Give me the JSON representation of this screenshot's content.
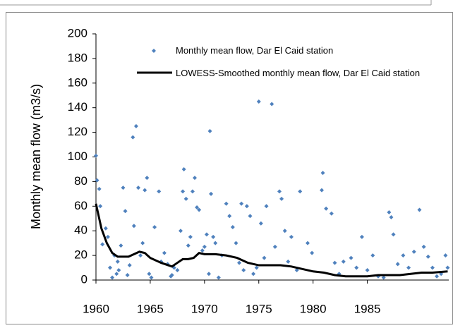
{
  "chart_data": {
    "type": "scatter",
    "y_label": "Monthly mean flow (m3/s)",
    "xlim": [
      1960,
      1992.5
    ],
    "xticks": [
      1960,
      1965,
      1970,
      1975,
      1980,
      1985
    ],
    "ylim": [
      0,
      200
    ],
    "yticks": [
      0,
      20,
      40,
      60,
      80,
      100,
      120,
      140,
      160,
      180,
      200
    ],
    "grid": false,
    "series": [
      {
        "name": "Monthly mean flow, Dar El Caid station",
        "type": "scatter",
        "color": "#4f81bd",
        "x": [
          1960.0,
          1960.1,
          1960.3,
          1960.4,
          1960.6,
          1960.9,
          1961.1,
          1961.3,
          1961.5,
          1961.7,
          1961.9,
          1962.1,
          1962.3,
          1962.5,
          1962.7,
          1962.9,
          1963.1,
          1963.4,
          1963.7,
          1963.5,
          1963.9,
          1964.1,
          1964.3,
          1964.5,
          1964.7,
          1964.9,
          1965.1,
          1965.4,
          1965.8,
          1966.0,
          1966.3,
          1966.6,
          1966.9,
          1967.2,
          1967.5,
          1967.8,
          1968.0,
          1968.1,
          1968.3,
          1968.5,
          1968.7,
          1968.9,
          1969.1,
          1969.3,
          1969.5,
          1969.8,
          1970.0,
          1970.2,
          1970.4,
          1970.5,
          1970.6,
          1970.8,
          1971.0,
          1971.3,
          1971.6,
          1972.0,
          1972.3,
          1972.6,
          1972.9,
          1973.2,
          1973.4,
          1973.6,
          1973.9,
          1974.2,
          1974.5,
          1975.0,
          1975.2,
          1975.5,
          1975.7,
          1976.2,
          1976.5,
          1976.9,
          1977.1,
          1977.4,
          1977.7,
          1978.0,
          1978.5,
          1978.8,
          1980.9,
          1980.8,
          1981.2,
          1981.7,
          1982.0,
          1982.4,
          1982.8,
          1983.5,
          1984.0,
          1984.5,
          1985.0,
          1985.5,
          1986.0,
          1986.5,
          1987.0,
          1987.2,
          1987.4,
          1987.8,
          1988.3,
          1988.8,
          1989.3,
          1989.8,
          1990.2,
          1990.6,
          1991.0,
          1991.4,
          1991.8,
          1992.2,
          1992.4,
          1979.5,
          1979.9,
          1974.8,
          1967.0,
          1962.0
        ],
        "values": [
          101,
          81,
          74,
          60,
          29,
          42,
          35,
          10,
          2,
          20,
          5,
          8,
          28,
          75,
          56,
          4,
          12,
          116,
          125,
          44,
          75,
          20,
          30,
          73,
          83,
          5,
          2,
          43,
          72,
          15,
          22,
          13,
          3,
          10,
          8,
          40,
          72,
          90,
          66,
          28,
          35,
          72,
          83,
          59,
          57,
          24,
          27,
          37,
          5,
          121,
          70,
          35,
          30,
          2,
          20,
          62,
          52,
          43,
          30,
          14,
          62,
          8,
          60,
          52,
          5,
          145,
          46,
          18,
          60,
          143,
          27,
          72,
          66,
          40,
          15,
          35,
          8,
          72,
          87,
          73,
          58,
          54,
          14,
          5,
          15,
          18,
          10,
          35,
          8,
          20,
          3,
          2,
          55,
          51,
          37,
          13,
          20,
          10,
          23,
          57,
          27,
          19,
          10,
          3,
          5,
          20,
          10,
          30,
          22,
          10,
          4,
          15
        ]
      },
      {
        "name": "LOWESS-Smoothed monthly mean flow, Dar El Caid station",
        "type": "line",
        "color": "#000000",
        "x": [
          1960,
          1960.5,
          1961,
          1961.5,
          1962,
          1963,
          1964,
          1964.5,
          1965,
          1966,
          1967,
          1967.5,
          1968,
          1968.5,
          1969,
          1969.5,
          1970,
          1971,
          1972,
          1973,
          1974,
          1975,
          1976,
          1977,
          1978,
          1979,
          1980,
          1981,
          1982,
          1983,
          1984,
          1985,
          1986,
          1987,
          1988,
          1989,
          1990,
          1991,
          1992.4
        ],
        "values": [
          62,
          42,
          30,
          22,
          19,
          19,
          23,
          22,
          18,
          14,
          11,
          14,
          17,
          17,
          18,
          22,
          21,
          21,
          20,
          18,
          14,
          12,
          12,
          12,
          11,
          9,
          7,
          6,
          4,
          3,
          3,
          3,
          4,
          4,
          4,
          5,
          6,
          6,
          7
        ]
      }
    ]
  }
}
